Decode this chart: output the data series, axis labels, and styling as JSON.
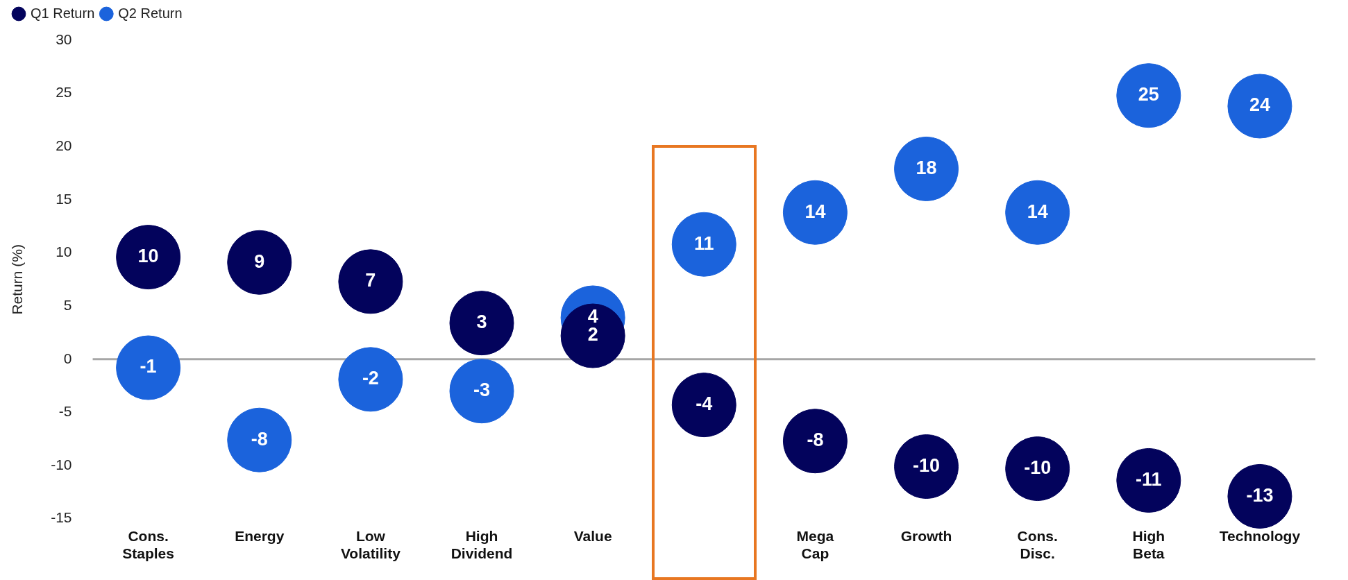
{
  "chart_data": {
    "type": "scatter",
    "ylabel": "Return (%)",
    "categories": [
      "Cons. Staples",
      "Energy",
      "Low Volatility",
      "High Dividend",
      "Value",
      null,
      "Mega Cap",
      "Growth",
      "Cons. Disc.",
      "High Beta",
      "Technology"
    ],
    "series": [
      {
        "name": "Q1 Return",
        "color": "#03035c",
        "values": [
          9.6,
          9.1,
          7.3,
          3.4,
          2.2,
          -4.3,
          -7.7,
          -10.1,
          -10.3,
          -11.4,
          -12.9
        ],
        "value_labels": [
          "10",
          "9",
          "7",
          "3",
          "2",
          "-4",
          "-8",
          "-10",
          "-10",
          "-11",
          "-13"
        ]
      },
      {
        "name": "Q2 Return",
        "color": "#1b63dc",
        "values": [
          -0.8,
          -7.6,
          -1.9,
          -3.0,
          3.9,
          10.8,
          13.8,
          17.9,
          13.8,
          24.8,
          23.8
        ],
        "value_labels": [
          "-1",
          "-8",
          "-2",
          "-3",
          "4",
          "11",
          "14",
          "18",
          "14",
          "25",
          "24"
        ]
      }
    ],
    "ylim": [
      -15,
      30
    ],
    "yticks": [
      -15,
      -10,
      -5,
      0,
      5,
      10,
      15,
      20,
      25,
      30
    ],
    "ref_lines": [
      {
        "axis": "y",
        "value": 0,
        "color": "#a6a6a6"
      }
    ],
    "grid": false,
    "legend": "top left",
    "marker": "circle"
  }
}
